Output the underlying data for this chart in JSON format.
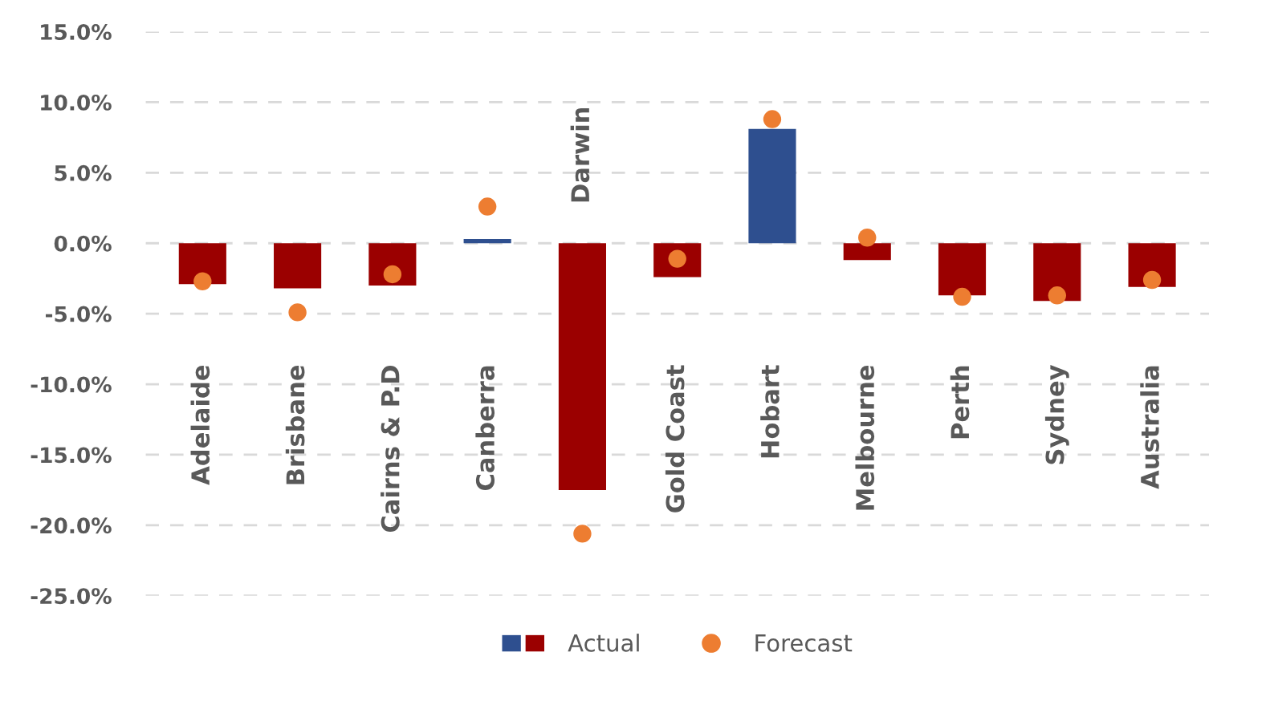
{
  "chart_data": {
    "type": "bar",
    "categories": [
      "Adelaide",
      "Brisbane",
      "Cairns & P.D",
      "Canberra",
      "Darwin",
      "Gold Coast",
      "Hobart",
      "Melbourne",
      "Perth",
      "Sydney",
      "Australia"
    ],
    "series": [
      {
        "name": "Actual",
        "colors": [
          "#9b0000",
          "#9b0000",
          "#9b0000",
          "#2e4f8f",
          "#9b0000",
          "#9b0000",
          "#2e4f8f",
          "#9b0000",
          "#9b0000",
          "#9b0000",
          "#9b0000"
        ],
        "values": [
          -2.9,
          -3.2,
          -3.0,
          0.3,
          -17.5,
          -2.4,
          8.1,
          -1.2,
          -3.7,
          -4.1,
          -3.1
        ]
      },
      {
        "name": "Forecast",
        "type": "scatter",
        "color": "#ed7d31",
        "marker": "circle",
        "values": [
          -2.7,
          -4.9,
          -2.2,
          2.6,
          -20.6,
          -1.1,
          8.8,
          0.4,
          -3.8,
          -3.7,
          -2.6
        ]
      }
    ],
    "ylim": [
      -25,
      15
    ],
    "yticks": [
      {
        "value": -25,
        "label": "-25.0%"
      },
      {
        "value": -20,
        "label": "-20.0%"
      },
      {
        "value": -15,
        "label": "-15.0%"
      },
      {
        "value": -10,
        "label": "-10.0%"
      },
      {
        "value": -5,
        "label": "-5.0%"
      },
      {
        "value": 0,
        "label": "0.0%"
      },
      {
        "value": 5,
        "label": "5.0%"
      },
      {
        "value": 10,
        "label": "10.0%"
      },
      {
        "value": 15,
        "label": "15.0%"
      }
    ],
    "grid": "y",
    "legend": "bottom"
  }
}
